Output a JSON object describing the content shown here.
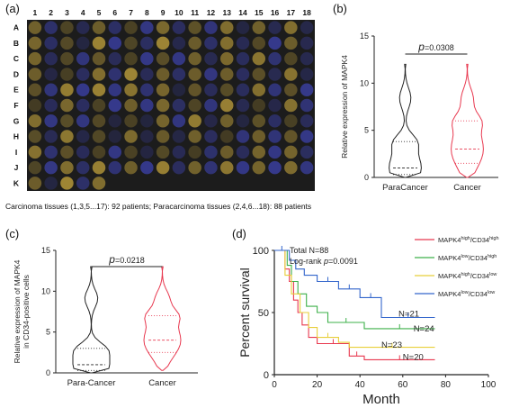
{
  "panels": {
    "a": {
      "letter": "(a)",
      "columns": [
        "1",
        "2",
        "3",
        "4",
        "5",
        "6",
        "7",
        "8",
        "9",
        "10",
        "11",
        "12",
        "13",
        "14",
        "15",
        "16",
        "17",
        "18"
      ],
      "rows": [
        "A",
        "B",
        "C",
        "D",
        "E",
        "F",
        "G",
        "H",
        "I",
        "J",
        "K"
      ],
      "caption": "Carcinoma tissues (1,3,5...17): 92 patients; Paracarcinoma tissues (2,4,6...18): 88 patients",
      "colors": {
        "background": "#1c1c1c",
        "carcinoma": "#b89a3a",
        "paracarcinoma": "#3a3fa0"
      }
    },
    "b": {
      "letter": "(b)",
      "p_label": "p",
      "p_value": "=0.0308",
      "chart_data": {
        "type": "violin",
        "categories": [
          "ParaCancer",
          "Cancer"
        ],
        "ylabel": "Relative expression of MAPK4",
        "ylim": [
          0,
          15
        ],
        "yticks": [
          0,
          5,
          10,
          15
        ],
        "series": [
          {
            "name": "ParaCancer",
            "color": "#222222",
            "min": 0,
            "max": 12,
            "median": 1,
            "q1": 0.3,
            "q3": 3.8
          },
          {
            "name": "Cancer",
            "color": "#e8384f",
            "min": 0,
            "max": 12,
            "median": 3,
            "q1": 1.5,
            "q3": 6
          }
        ]
      }
    },
    "c": {
      "letter": "(c)",
      "p_label": "p",
      "p_value": "=0.0218",
      "chart_data": {
        "type": "violin",
        "categories": [
          "Para-Cancer",
          "Cancer"
        ],
        "ylabel": [
          "Relative expression of MAPK4",
          "in CD34-positive cells"
        ],
        "ylim": [
          0,
          15
        ],
        "yticks": [
          0,
          5,
          10,
          15
        ],
        "series": [
          {
            "name": "Para-Cancer",
            "color": "#222222",
            "min": 0,
            "max": 13,
            "median": 1,
            "q1": 0.3,
            "q3": 3
          },
          {
            "name": "Cancer",
            "color": "#e8384f",
            "min": 0.3,
            "max": 13,
            "median": 4,
            "q1": 2.5,
            "q3": 7
          }
        ]
      }
    },
    "d": {
      "letter": "(d)",
      "total_label": "Total N=88",
      "logrank_prefix": "Log-rank ",
      "logrank_p": "p",
      "logrank_value": "=0.0091",
      "chart_data": {
        "type": "line",
        "xlabel": "Month",
        "ylabel": "Percent survival",
        "xlim": [
          0,
          100
        ],
        "ylim": [
          0,
          100
        ],
        "xticks": [
          0,
          20,
          40,
          60,
          80,
          100
        ],
        "yticks": [
          0,
          50,
          100
        ],
        "series": [
          {
            "name": "MAPK4high/CD34high",
            "color": "#e8384f",
            "n_label": "N=20",
            "points": [
              [
                0,
                100
              ],
              [
                5,
                100
              ],
              [
                5,
                85
              ],
              [
                7,
                85
              ],
              [
                7,
                75
              ],
              [
                9,
                75
              ],
              [
                9,
                60
              ],
              [
                11,
                60
              ],
              [
                11,
                50
              ],
              [
                13,
                50
              ],
              [
                13,
                40
              ],
              [
                16,
                40
              ],
              [
                16,
                30
              ],
              [
                20,
                30
              ],
              [
                20,
                25
              ],
              [
                35,
                25
              ],
              [
                35,
                15
              ],
              [
                42,
                15
              ],
              [
                42,
                12
              ],
              [
                75,
                12
              ]
            ]
          },
          {
            "name": "MAPK4low/CD34high",
            "color": "#3db04a",
            "n_label": "N=24",
            "points": [
              [
                0,
                100
              ],
              [
                6,
                100
              ],
              [
                6,
                88
              ],
              [
                8,
                88
              ],
              [
                8,
                75
              ],
              [
                11,
                75
              ],
              [
                11,
                65
              ],
              [
                15,
                65
              ],
              [
                15,
                55
              ],
              [
                20,
                55
              ],
              [
                20,
                50
              ],
              [
                25,
                50
              ],
              [
                25,
                42
              ],
              [
                42,
                42
              ],
              [
                42,
                37
              ],
              [
                75,
                37
              ]
            ]
          },
          {
            "name": "MAPK4high/CD34low",
            "color": "#e8cf3a",
            "n_label": "N=23",
            "points": [
              [
                0,
                100
              ],
              [
                5,
                100
              ],
              [
                5,
                80
              ],
              [
                8,
                80
              ],
              [
                8,
                65
              ],
              [
                12,
                65
              ],
              [
                12,
                50
              ],
              [
                16,
                50
              ],
              [
                16,
                38
              ],
              [
                20,
                38
              ],
              [
                20,
                30
              ],
              [
                30,
                30
              ],
              [
                30,
                26
              ],
              [
                35,
                26
              ],
              [
                35,
                22
              ],
              [
                75,
                22
              ]
            ]
          },
          {
            "name": "MAPK4low/CD34low",
            "color": "#3366cc",
            "n_label": "N=21",
            "points": [
              [
                0,
                100
              ],
              [
                7,
                100
              ],
              [
                7,
                92
              ],
              [
                10,
                92
              ],
              [
                10,
                85
              ],
              [
                14,
                85
              ],
              [
                14,
                80
              ],
              [
                20,
                80
              ],
              [
                20,
                75
              ],
              [
                30,
                75
              ],
              [
                30,
                69
              ],
              [
                40,
                69
              ],
              [
                40,
                62
              ],
              [
                50,
                62
              ],
              [
                50,
                46
              ],
              [
                75,
                46
              ]
            ]
          }
        ],
        "legend": [
          {
            "base": "MAPK4",
            "sup1": "high",
            "mid": "/CD34",
            "sup2": "high",
            "color": "#e8384f"
          },
          {
            "base": "MAPK4",
            "sup1": "low",
            "mid": "/CD34",
            "sup2": "high",
            "color": "#3db04a"
          },
          {
            "base": "MAPK4",
            "sup1": "high",
            "mid": "/CD34",
            "sup2": "low",
            "color": "#e8cf3a"
          },
          {
            "base": "MAPK4",
            "sup1": "low",
            "mid": "/CD34",
            "sup2": "low",
            "color": "#3366cc"
          }
        ]
      }
    }
  }
}
